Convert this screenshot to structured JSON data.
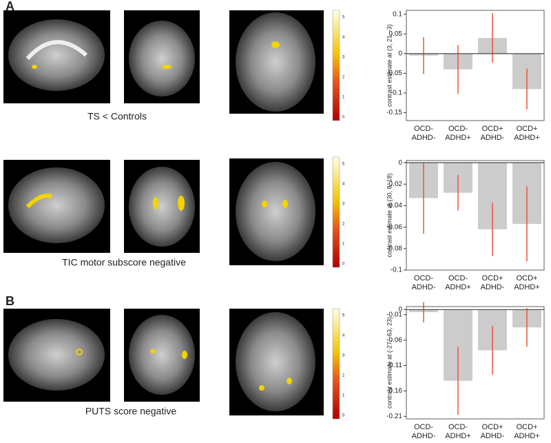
{
  "panels": [
    "A",
    "B"
  ],
  "captions": [
    "TS < Controls",
    "TIC motor subscore negative",
    "PUTS score negative"
  ],
  "colorbars": [
    {
      "ticks": [
        0,
        1,
        2,
        3,
        4,
        5
      ]
    },
    {
      "ticks": [
        0,
        1,
        2,
        3,
        4,
        5
      ]
    },
    {
      "ticks": [
        0,
        1,
        2,
        3,
        4,
        5
      ]
    }
  ],
  "chart_data": [
    {
      "type": "bar",
      "ylabel": "contrast estimate at (3, 21, -3)",
      "categories": [
        [
          "OCD-",
          "ADHD-"
        ],
        [
          "OCD-",
          "ADHD+"
        ],
        [
          "OCD+",
          "ADHD-"
        ],
        [
          "OCD+",
          "ADHD+"
        ]
      ],
      "values": [
        -0.005,
        -0.04,
        0.04,
        -0.09
      ],
      "errors": [
        0.047,
        0.062,
        0.063,
        0.052
      ],
      "color": "#cccccc",
      "error_color": "#e8553a",
      "ylim": [
        -0.17,
        0.11
      ],
      "yticks": [
        -0.15,
        -0.1,
        -0.05,
        0,
        0.05,
        0.1
      ]
    },
    {
      "type": "bar",
      "ylabel": "contrast estimate at (30, 8, 18)",
      "categories": [
        [
          "OCD-",
          "ADHD-"
        ],
        [
          "OCD-",
          "ADHD+"
        ],
        [
          "OCD+",
          "ADHD-"
        ],
        [
          "OCD+",
          "ADHD+"
        ]
      ],
      "values": [
        -0.033,
        -0.028,
        -0.062,
        -0.057
      ],
      "errors": [
        0.033,
        0.0165,
        0.025,
        0.035
      ],
      "color": "#cccccc",
      "error_color": "#e8553a",
      "ylim": [
        -0.1,
        0.002
      ],
      "yticks": [
        -0.1,
        -0.08,
        -0.06,
        -0.04,
        -0.02,
        0
      ]
    },
    {
      "type": "bar",
      "ylabel": "contrast estimate at (-27, -63, 23)",
      "categories": [
        [
          "OCD-",
          "ADHD-"
        ],
        [
          "OCD-",
          "ADHD+"
        ],
        [
          "OCD+",
          "ADHD-"
        ],
        [
          "OCD+",
          "ADHD+"
        ]
      ],
      "values": [
        -0.005,
        -0.14,
        -0.08,
        -0.035
      ],
      "errors": [
        0.02,
        0.067,
        0.048,
        0.038
      ],
      "color": "#cccccc",
      "error_color": "#e8553a",
      "ylim": [
        -0.215,
        0.006
      ],
      "yticks": [
        0,
        -0.01,
        -0.06,
        -0.11,
        -0.16,
        -0.21
      ]
    }
  ]
}
